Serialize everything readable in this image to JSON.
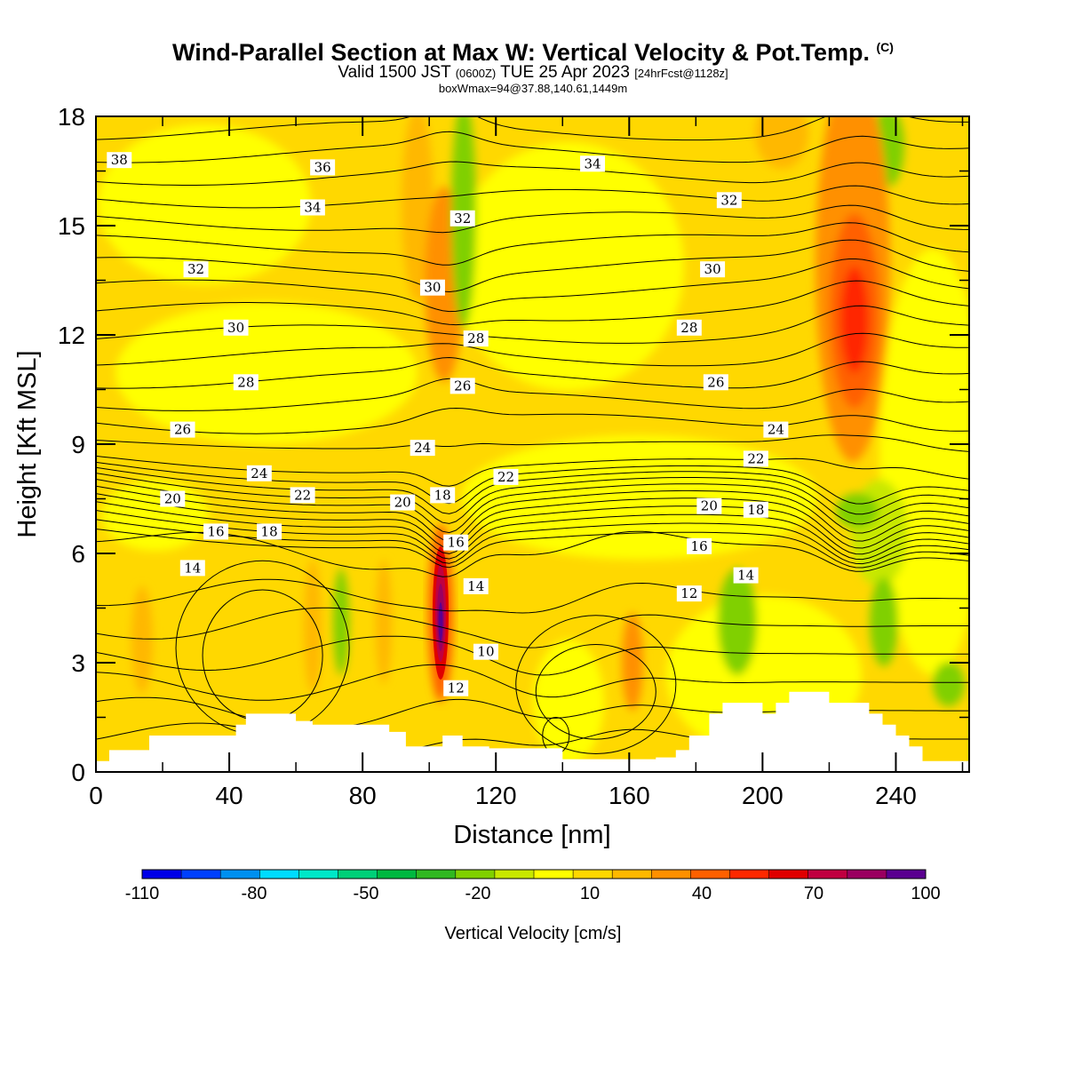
{
  "header": {
    "title": "Wind-Parallel Section at Max W: Vertical Velocity & Pot.Temp.",
    "copyright": "(C)",
    "valid_prefix": "Valid 1500 JST",
    "utc": "(0600Z)",
    "date": "TUE 25 Apr 2023",
    "forecast": "[24hrFcst@1128z]",
    "box_info": "boxWmax=94@37.88,140.61,1449m"
  },
  "chart_data": {
    "type": "heatmap",
    "title": "Wind-Parallel Section at Max W: Vertical Velocity & Pot.Temp.",
    "xlabel": "Distance [nm]",
    "ylabel": "Height [Kft MSL]",
    "xlim": [
      0,
      262
    ],
    "ylim": [
      0,
      18
    ],
    "x_ticks": [
      0,
      40,
      80,
      120,
      160,
      200,
      240
    ],
    "y_ticks": [
      0,
      3,
      6,
      9,
      12,
      15,
      18
    ],
    "colorbar": {
      "label": "Vertical Velocity [cm/s]",
      "tick_labels": [
        "-110",
        "-80",
        "-50",
        "-20",
        "10",
        "40",
        "70",
        "100"
      ],
      "tick_values": [
        -110,
        -80,
        -50,
        -20,
        10,
        40,
        70,
        100
      ],
      "min": -110,
      "max": 100,
      "step": 10,
      "colors": [
        "#0000e8",
        "#0040ff",
        "#0090f0",
        "#00dcff",
        "#00e8c8",
        "#00d078",
        "#00b840",
        "#30b820",
        "#80d000",
        "#c8e800",
        "#ffff00",
        "#ffd800",
        "#ffb800",
        "#ff9000",
        "#ff6000",
        "#ff2800",
        "#e00000",
        "#c00040",
        "#9a0060",
        "#5a0090"
      ]
    },
    "max_w_cm_s": 94,
    "pot_temp_contour_labels": [
      {
        "label": "38",
        "x": 7,
        "y": 16.8
      },
      {
        "label": "36",
        "x": 68,
        "y": 16.6
      },
      {
        "label": "34",
        "x": 65,
        "y": 15.5
      },
      {
        "label": "34",
        "x": 149,
        "y": 16.7
      },
      {
        "label": "32",
        "x": 110,
        "y": 15.2
      },
      {
        "label": "32",
        "x": 190,
        "y": 15.7
      },
      {
        "label": "32",
        "x": 30,
        "y": 13.8
      },
      {
        "label": "30",
        "x": 101,
        "y": 13.3
      },
      {
        "label": "30",
        "x": 185,
        "y": 13.8
      },
      {
        "label": "30",
        "x": 42,
        "y": 12.2
      },
      {
        "label": "28",
        "x": 114,
        "y": 11.9
      },
      {
        "label": "28",
        "x": 178,
        "y": 12.2
      },
      {
        "label": "28",
        "x": 45,
        "y": 10.7
      },
      {
        "label": "26",
        "x": 110,
        "y": 10.6
      },
      {
        "label": "26",
        "x": 186,
        "y": 10.7
      },
      {
        "label": "26",
        "x": 26,
        "y": 9.4
      },
      {
        "label": "24",
        "x": 98,
        "y": 8.9
      },
      {
        "label": "24",
        "x": 204,
        "y": 9.4
      },
      {
        "label": "24",
        "x": 49,
        "y": 8.2
      },
      {
        "label": "22",
        "x": 123,
        "y": 8.1
      },
      {
        "label": "22",
        "x": 198,
        "y": 8.6
      },
      {
        "label": "22",
        "x": 62,
        "y": 7.6
      },
      {
        "label": "20",
        "x": 23,
        "y": 7.5
      },
      {
        "label": "20",
        "x": 92,
        "y": 7.4
      },
      {
        "label": "20",
        "x": 184,
        "y": 7.3
      },
      {
        "label": "18",
        "x": 104,
        "y": 7.6
      },
      {
        "label": "18",
        "x": 198,
        "y": 7.2
      },
      {
        "label": "18",
        "x": 52,
        "y": 6.6
      },
      {
        "label": "16",
        "x": 36,
        "y": 6.6
      },
      {
        "label": "16",
        "x": 108,
        "y": 6.3
      },
      {
        "label": "16",
        "x": 181,
        "y": 6.2
      },
      {
        "label": "14",
        "x": 29,
        "y": 5.6
      },
      {
        "label": "14",
        "x": 114,
        "y": 5.1
      },
      {
        "label": "14",
        "x": 195,
        "y": 5.4
      },
      {
        "label": "12",
        "x": 178,
        "y": 4.9
      },
      {
        "label": "12",
        "x": 108,
        "y": 2.3
      },
      {
        "label": "10",
        "x": 117,
        "y": 3.3
      }
    ],
    "terrain_profile": {
      "x": [
        0,
        4,
        16,
        42,
        45,
        48,
        60,
        65,
        77,
        88,
        93,
        100,
        104,
        110,
        118,
        132,
        140,
        150,
        160,
        168,
        174,
        178,
        184,
        188,
        192,
        200,
        204,
        208,
        216,
        220,
        228,
        232,
        236,
        240,
        244,
        248,
        262
      ],
      "y": [
        0.3,
        0.6,
        1.0,
        1.3,
        1.6,
        1.6,
        1.4,
        1.3,
        1.3,
        1.1,
        0.7,
        0.7,
        1.0,
        0.7,
        0.65,
        0.65,
        0.35,
        0.35,
        0.35,
        0.4,
        0.6,
        1.0,
        1.6,
        1.9,
        1.9,
        1.6,
        1.9,
        2.2,
        2.2,
        1.9,
        1.9,
        1.6,
        1.3,
        1.0,
        0.7,
        0.3,
        0.3
      ]
    }
  }
}
